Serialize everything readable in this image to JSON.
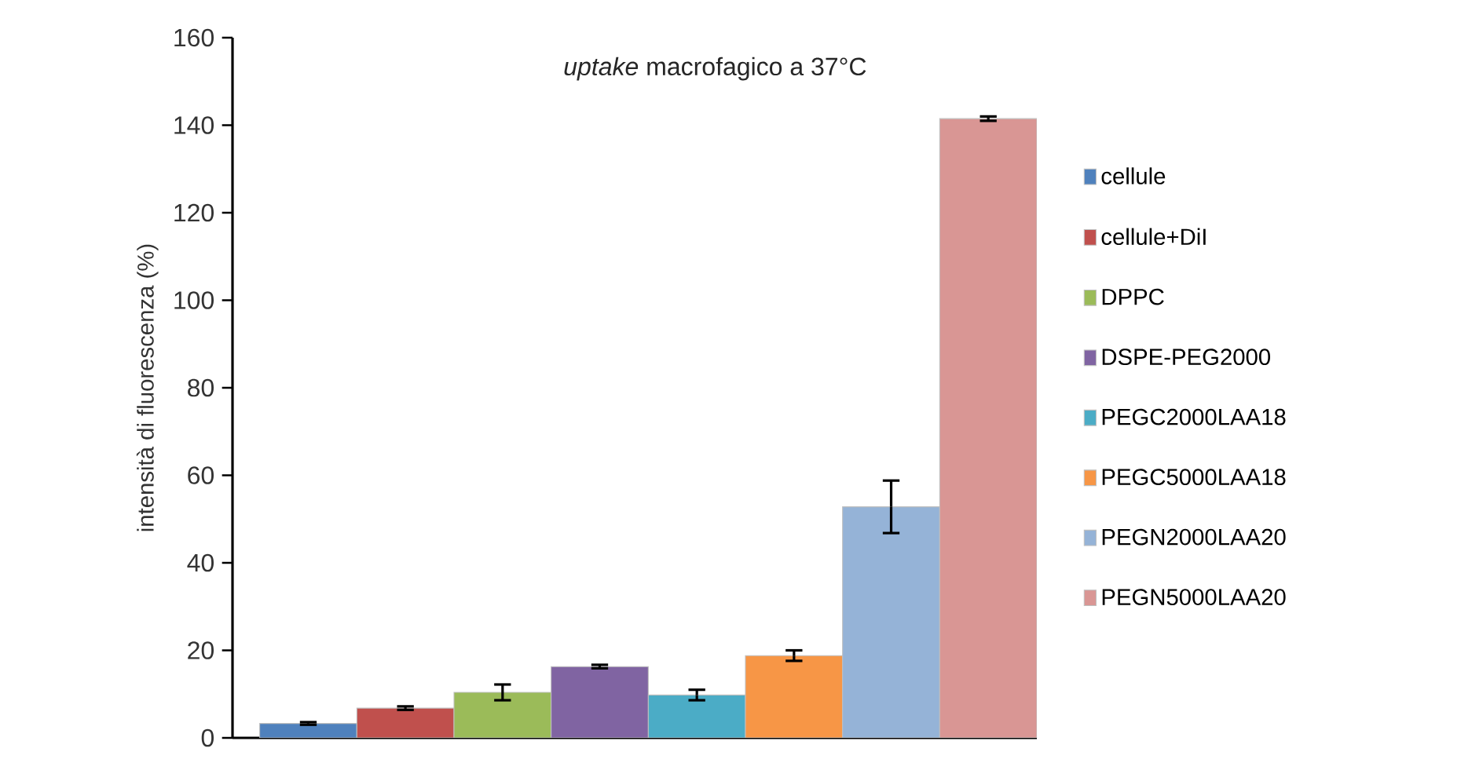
{
  "chart_data": {
    "type": "bar",
    "title": "*uptake* macrofagico a 37°C",
    "ylabel": "intensità di fluorescenza (%)",
    "categories": [
      null
    ],
    "series": [
      {
        "name": "cellule",
        "color": "#4f81bd",
        "values": [
          3.3
        ],
        "errors": [
          0.3
        ]
      },
      {
        "name": "cellule+DiI",
        "color": "#c0504d",
        "values": [
          6.8
        ],
        "errors": [
          0.4
        ]
      },
      {
        "name": "DPPC",
        "color": "#9bbb59",
        "values": [
          10.4
        ],
        "errors": [
          1.8
        ]
      },
      {
        "name": "DSPE-PEG2000",
        "color": "#8064a2",
        "values": [
          16.3
        ],
        "errors": [
          0.4
        ]
      },
      {
        "name": "PEGC2000LAA18",
        "color": "#4bacc6",
        "values": [
          9.8
        ],
        "errors": [
          1.2
        ]
      },
      {
        "name": "PEGC5000LAA18",
        "color": "#f79646",
        "values": [
          18.8
        ],
        "errors": [
          1.2
        ]
      },
      {
        "name": "PEGN2000LAA20",
        "color": "#95b3d7",
        "values": [
          52.8
        ],
        "errors": [
          6
        ]
      },
      {
        "name": "PEGN5000LAA20",
        "color": "#d99694",
        "values": [
          141.5
        ],
        "errors": [
          0.5
        ]
      }
    ],
    "ylim": [
      0,
      160
    ],
    "yticks": [
      0,
      20,
      40,
      60,
      80,
      100,
      120,
      140,
      160
    ],
    "grid": false,
    "legend": "right"
  }
}
